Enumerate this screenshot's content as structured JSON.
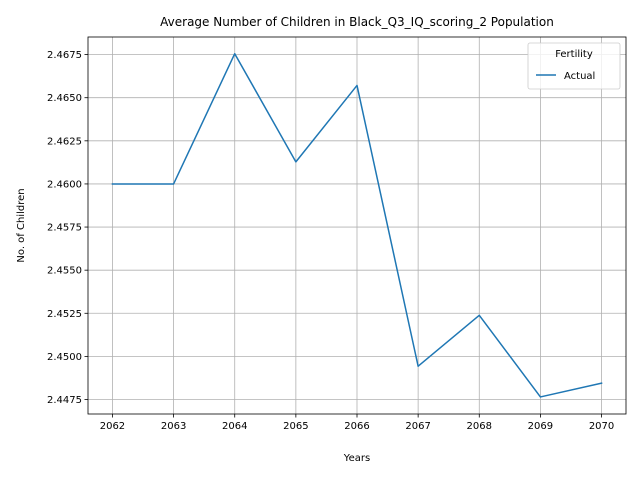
{
  "chart_data": {
    "type": "line",
    "title": "Average Number of Children in Black_Q3_IQ_scoring_2 Population",
    "xlabel": "Years",
    "ylabel": "No. of Children",
    "x": [
      2062,
      2063,
      2064,
      2065,
      2066,
      2067,
      2068,
      2069,
      2070
    ],
    "x_tick_labels": [
      "2062",
      "2063",
      "2064",
      "2065",
      "2066",
      "2067",
      "2068",
      "2069",
      "2070"
    ],
    "y_ticks": [
      2.4475,
      2.45,
      2.4525,
      2.455,
      2.4575,
      2.46,
      2.4625,
      2.465,
      2.4675
    ],
    "y_tick_labels": [
      "2.4475",
      "2.4500",
      "2.4525",
      "2.4550",
      "2.4575",
      "2.4600",
      "2.4625",
      "2.4650",
      "2.4675"
    ],
    "xlim": [
      2061.6,
      2070.4
    ],
    "ylim": [
      2.44666,
      2.46852
    ],
    "grid": true,
    "legend": {
      "title": "Fertility",
      "placement": "top-right"
    },
    "series": [
      {
        "name": "Actual",
        "color": "#1f77b4",
        "values": [
          2.46,
          2.46,
          2.46755,
          2.46128,
          2.46571,
          2.44943,
          2.45238,
          2.44765,
          2.44845
        ]
      }
    ]
  }
}
